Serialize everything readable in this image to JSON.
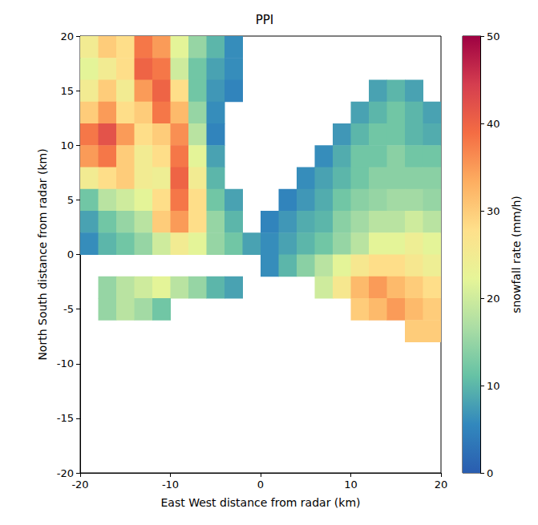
{
  "chart_data": {
    "type": "heatmap",
    "title": "PPI",
    "x_label": "East West distance from radar (km)",
    "y_label": "North South distance from radar (km)",
    "x": [
      -19,
      -17,
      -15,
      -13,
      -11,
      -9,
      -7,
      -5,
      -3,
      -1,
      1,
      3,
      5,
      7,
      9,
      11,
      13,
      15,
      17,
      19
    ],
    "y": [
      19,
      17,
      15,
      13,
      11,
      9,
      7,
      5,
      3,
      1,
      -1,
      -3,
      -5,
      -7,
      -9,
      -11,
      -13,
      -15,
      -17,
      -19
    ],
    "values": [
      [
        25,
        30,
        28,
        38,
        35,
        22,
        15,
        10,
        6,
        null,
        null,
        null,
        null,
        null,
        null,
        null,
        null,
        null,
        null,
        null
      ],
      [
        22,
        25,
        28,
        40,
        38,
        20,
        12,
        8,
        6,
        null,
        null,
        null,
        null,
        null,
        null,
        null,
        null,
        null,
        null,
        null
      ],
      [
        25,
        30,
        25,
        35,
        40,
        28,
        12,
        7,
        5,
        null,
        null,
        null,
        null,
        null,
        null,
        null,
        8,
        10,
        8,
        null
      ],
      [
        30,
        35,
        28,
        30,
        38,
        32,
        15,
        6,
        null,
        null,
        null,
        null,
        null,
        null,
        null,
        8,
        10,
        12,
        10,
        8
      ],
      [
        38,
        42,
        35,
        28,
        30,
        36,
        18,
        5,
        null,
        null,
        null,
        null,
        null,
        null,
        7,
        10,
        12,
        12,
        10,
        9
      ],
      [
        35,
        38,
        30,
        25,
        28,
        38,
        22,
        8,
        null,
        null,
        null,
        null,
        null,
        6,
        9,
        12,
        12,
        14,
        12,
        12
      ],
      [
        25,
        28,
        30,
        25,
        24,
        40,
        25,
        10,
        null,
        null,
        null,
        null,
        6,
        8,
        10,
        12,
        14,
        14,
        14,
        14
      ],
      [
        12,
        18,
        20,
        22,
        28,
        38,
        28,
        12,
        8,
        null,
        null,
        5,
        7,
        9,
        12,
        14,
        15,
        16,
        16,
        15
      ],
      [
        8,
        12,
        15,
        18,
        30,
        35,
        28,
        15,
        10,
        null,
        5,
        7,
        9,
        10,
        14,
        16,
        18,
        18,
        20,
        18
      ],
      [
        6,
        10,
        12,
        15,
        20,
        25,
        22,
        15,
        12,
        8,
        6,
        8,
        10,
        12,
        15,
        18,
        22,
        22,
        24,
        22
      ],
      [
        null,
        null,
        null,
        null,
        null,
        null,
        null,
        null,
        null,
        null,
        6,
        10,
        14,
        18,
        22,
        26,
        28,
        28,
        26,
        24
      ],
      [
        null,
        15,
        18,
        20,
        22,
        18,
        15,
        10,
        8,
        null,
        null,
        null,
        null,
        20,
        26,
        32,
        35,
        32,
        30,
        28
      ],
      [
        null,
        15,
        18,
        16,
        12,
        null,
        null,
        null,
        null,
        null,
        null,
        null,
        null,
        null,
        null,
        30,
        32,
        35,
        32,
        30
      ],
      [
        null,
        null,
        null,
        null,
        null,
        null,
        null,
        null,
        null,
        null,
        null,
        null,
        null,
        null,
        null,
        null,
        null,
        null,
        30,
        30
      ],
      [
        null,
        null,
        null,
        null,
        null,
        null,
        null,
        null,
        null,
        null,
        null,
        null,
        null,
        null,
        null,
        null,
        null,
        null,
        null,
        null
      ],
      [
        null,
        null,
        null,
        null,
        null,
        null,
        null,
        null,
        null,
        null,
        null,
        null,
        null,
        null,
        null,
        null,
        null,
        null,
        null,
        null
      ],
      [
        null,
        null,
        null,
        null,
        null,
        null,
        null,
        null,
        null,
        null,
        null,
        null,
        null,
        null,
        null,
        null,
        null,
        null,
        null,
        null
      ],
      [
        null,
        null,
        null,
        null,
        null,
        null,
        null,
        null,
        null,
        null,
        null,
        null,
        null,
        null,
        null,
        null,
        null,
        null,
        null,
        null
      ],
      [
        null,
        null,
        null,
        null,
        null,
        null,
        null,
        null,
        null,
        null,
        null,
        null,
        null,
        null,
        null,
        null,
        null,
        null,
        null,
        null
      ],
      [
        null,
        null,
        null,
        null,
        null,
        null,
        null,
        null,
        null,
        null,
        null,
        null,
        null,
        null,
        null,
        null,
        null,
        null,
        null,
        null
      ]
    ],
    "xlim": [
      -20,
      20
    ],
    "xticks": [
      -20,
      -10,
      0,
      10,
      20
    ],
    "ylim": [
      -20,
      20
    ],
    "yticks": [
      -20,
      -15,
      -10,
      -5,
      0,
      5,
      10,
      15,
      20
    ],
    "colorbar": {
      "label": "snowfall rate (mm/h)",
      "range": [
        0,
        50
      ],
      "ticks": [
        0,
        10,
        20,
        30,
        40,
        50
      ]
    },
    "grid": false
  }
}
